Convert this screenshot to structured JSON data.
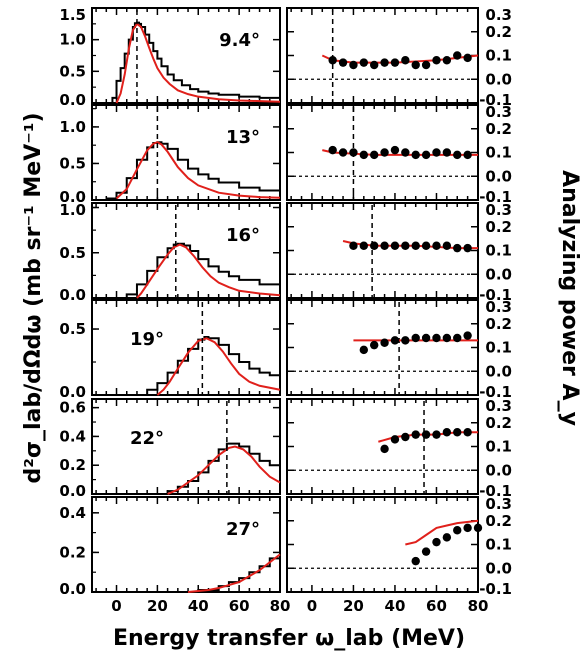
{
  "chart_data": {
    "type": "line",
    "xlabel": "Energy transfer ω_lab (MeV)",
    "ylabel_left": "d²σ_lab/dΩdω (mb sr⁻¹ MeV⁻¹)",
    "ylabel_right": "Analyzing power A_y",
    "x_ticks": [
      "0",
      "20",
      "40",
      "60",
      "80"
    ],
    "xlim": [
      -12,
      80
    ],
    "colors": {
      "data": "#000000",
      "theory": "#e0201b"
    },
    "ay_ylim": [
      -0.1,
      0.3
    ],
    "ay_ticks": [
      "0.3",
      "0.2",
      "0.1",
      "0.0",
      "-0.1"
    ],
    "panels": [
      {
        "angle": "9.4°",
        "peak": 10,
        "xs_ylim": [
          0,
          1.5
        ],
        "xs_ticks": [
          "1.5",
          "1.0",
          "0.5",
          "0.0"
        ],
        "xs_data": [
          [
            -5,
            0.0
          ],
          [
            -2,
            0.08
          ],
          [
            0,
            0.35
          ],
          [
            2,
            0.55
          ],
          [
            4,
            0.78
          ],
          [
            6,
            1.0
          ],
          [
            8,
            1.2
          ],
          [
            9,
            1.26
          ],
          [
            10,
            1.27
          ],
          [
            11,
            1.25
          ],
          [
            12,
            1.2
          ],
          [
            14,
            1.08
          ],
          [
            16,
            0.95
          ],
          [
            18,
            0.82
          ],
          [
            20,
            0.7
          ],
          [
            22,
            0.58
          ],
          [
            25,
            0.45
          ],
          [
            28,
            0.36
          ],
          [
            32,
            0.28
          ],
          [
            36,
            0.22
          ],
          [
            40,
            0.18
          ],
          [
            45,
            0.15
          ],
          [
            50,
            0.13
          ],
          [
            60,
            0.1
          ],
          [
            70,
            0.08
          ],
          [
            80,
            0.06
          ]
        ],
        "xs_theory": [
          [
            0,
            0.0
          ],
          [
            2,
            0.15
          ],
          [
            4,
            0.45
          ],
          [
            6,
            0.85
          ],
          [
            8,
            1.15
          ],
          [
            10,
            1.25
          ],
          [
            12,
            1.2
          ],
          [
            14,
            1.05
          ],
          [
            16,
            0.87
          ],
          [
            18,
            0.7
          ],
          [
            20,
            0.55
          ],
          [
            23,
            0.4
          ],
          [
            26,
            0.3
          ],
          [
            30,
            0.2
          ],
          [
            35,
            0.14
          ],
          [
            40,
            0.1
          ],
          [
            50,
            0.06
          ],
          [
            60,
            0.04
          ],
          [
            70,
            0.03
          ],
          [
            80,
            0.02
          ]
        ],
        "ay_data": [
          [
            10,
            0.08
          ],
          [
            15,
            0.07
          ],
          [
            20,
            0.06
          ],
          [
            25,
            0.07
          ],
          [
            30,
            0.06
          ],
          [
            35,
            0.07
          ],
          [
            40,
            0.07
          ],
          [
            45,
            0.08
          ],
          [
            50,
            0.06
          ],
          [
            55,
            0.06
          ],
          [
            60,
            0.08
          ],
          [
            65,
            0.08
          ],
          [
            70,
            0.1
          ],
          [
            75,
            0.09
          ]
        ],
        "ay_theory": [
          [
            5,
            0.1
          ],
          [
            10,
            0.08
          ],
          [
            20,
            0.07
          ],
          [
            30,
            0.07
          ],
          [
            40,
            0.07
          ],
          [
            50,
            0.075
          ],
          [
            60,
            0.08
          ],
          [
            70,
            0.09
          ],
          [
            80,
            0.1
          ]
        ]
      },
      {
        "angle": "13°",
        "peak": 20,
        "xs_ylim": [
          0,
          1.3
        ],
        "xs_ticks": [
          "1.0",
          "0.5",
          "0.0"
        ],
        "xs_data": [
          [
            -5,
            0.02
          ],
          [
            0,
            0.1
          ],
          [
            5,
            0.3
          ],
          [
            10,
            0.55
          ],
          [
            15,
            0.72
          ],
          [
            18,
            0.78
          ],
          [
            20,
            0.79
          ],
          [
            22,
            0.77
          ],
          [
            25,
            0.7
          ],
          [
            30,
            0.55
          ],
          [
            35,
            0.43
          ],
          [
            40,
            0.35
          ],
          [
            45,
            0.29
          ],
          [
            50,
            0.24
          ],
          [
            60,
            0.17
          ],
          [
            70,
            0.13
          ],
          [
            80,
            0.1
          ]
        ],
        "xs_theory": [
          [
            0,
            0.02
          ],
          [
            5,
            0.15
          ],
          [
            10,
            0.42
          ],
          [
            15,
            0.68
          ],
          [
            18,
            0.77
          ],
          [
            20,
            0.79
          ],
          [
            22,
            0.76
          ],
          [
            25,
            0.66
          ],
          [
            30,
            0.45
          ],
          [
            35,
            0.3
          ],
          [
            40,
            0.2
          ],
          [
            50,
            0.1
          ],
          [
            60,
            0.06
          ],
          [
            70,
            0.04
          ],
          [
            80,
            0.03
          ]
        ],
        "ay_data": [
          [
            10,
            0.11
          ],
          [
            15,
            0.1
          ],
          [
            20,
            0.1
          ],
          [
            25,
            0.09
          ],
          [
            30,
            0.09
          ],
          [
            35,
            0.1
          ],
          [
            40,
            0.11
          ],
          [
            45,
            0.1
          ],
          [
            50,
            0.09
          ],
          [
            55,
            0.09
          ],
          [
            60,
            0.1
          ],
          [
            65,
            0.1
          ],
          [
            70,
            0.09
          ],
          [
            75,
            0.09
          ]
        ],
        "ay_theory": [
          [
            5,
            0.11
          ],
          [
            10,
            0.1
          ],
          [
            20,
            0.095
          ],
          [
            30,
            0.09
          ],
          [
            40,
            0.09
          ],
          [
            50,
            0.09
          ],
          [
            60,
            0.09
          ],
          [
            70,
            0.09
          ],
          [
            80,
            0.09
          ]
        ]
      },
      {
        "angle": "16°",
        "peak": 29,
        "xs_ylim": [
          0,
          1.05
        ],
        "xs_ticks": [
          "1.0",
          "0.5",
          "0.0"
        ],
        "xs_data": [
          [
            0,
            0.0
          ],
          [
            5,
            0.04
          ],
          [
            10,
            0.15
          ],
          [
            15,
            0.3
          ],
          [
            20,
            0.45
          ],
          [
            25,
            0.55
          ],
          [
            28,
            0.59
          ],
          [
            30,
            0.6
          ],
          [
            33,
            0.58
          ],
          [
            36,
            0.52
          ],
          [
            40,
            0.43
          ],
          [
            45,
            0.35
          ],
          [
            50,
            0.29
          ],
          [
            55,
            0.24
          ],
          [
            60,
            0.2
          ],
          [
            70,
            0.15
          ],
          [
            80,
            0.12
          ]
        ],
        "xs_theory": [
          [
            10,
            0.0
          ],
          [
            12,
            0.05
          ],
          [
            15,
            0.15
          ],
          [
            20,
            0.32
          ],
          [
            25,
            0.48
          ],
          [
            28,
            0.56
          ],
          [
            31,
            0.59
          ],
          [
            34,
            0.56
          ],
          [
            38,
            0.46
          ],
          [
            42,
            0.34
          ],
          [
            46,
            0.24
          ],
          [
            50,
            0.17
          ],
          [
            55,
            0.12
          ],
          [
            60,
            0.08
          ],
          [
            70,
            0.05
          ],
          [
            80,
            0.03
          ]
        ],
        "ay_data": [
          [
            20,
            0.12
          ],
          [
            25,
            0.12
          ],
          [
            30,
            0.12
          ],
          [
            35,
            0.12
          ],
          [
            40,
            0.12
          ],
          [
            45,
            0.12
          ],
          [
            50,
            0.12
          ],
          [
            55,
            0.12
          ],
          [
            60,
            0.12
          ],
          [
            65,
            0.12
          ],
          [
            70,
            0.11
          ],
          [
            75,
            0.11
          ]
        ],
        "ay_theory": [
          [
            15,
            0.14
          ],
          [
            20,
            0.13
          ],
          [
            30,
            0.12
          ],
          [
            40,
            0.12
          ],
          [
            50,
            0.12
          ],
          [
            60,
            0.115
          ],
          [
            70,
            0.11
          ],
          [
            80,
            0.11
          ]
        ]
      },
      {
        "angle": "19°",
        "peak": 42,
        "xs_ylim": [
          0,
          0.72
        ],
        "xs_ticks": [
          "0.5",
          "0.0"
        ],
        "xs_data": [
          [
            10,
            0.0
          ],
          [
            15,
            0.04
          ],
          [
            20,
            0.09
          ],
          [
            25,
            0.17
          ],
          [
            30,
            0.26
          ],
          [
            35,
            0.35
          ],
          [
            40,
            0.42
          ],
          [
            43,
            0.44
          ],
          [
            45,
            0.43
          ],
          [
            50,
            0.38
          ],
          [
            55,
            0.31
          ],
          [
            60,
            0.25
          ],
          [
            65,
            0.2
          ],
          [
            70,
            0.17
          ],
          [
            75,
            0.15
          ],
          [
            80,
            0.13
          ]
        ],
        "xs_theory": [
          [
            20,
            0.0
          ],
          [
            23,
            0.04
          ],
          [
            26,
            0.1
          ],
          [
            30,
            0.2
          ],
          [
            35,
            0.32
          ],
          [
            40,
            0.41
          ],
          [
            44,
            0.43
          ],
          [
            48,
            0.4
          ],
          [
            52,
            0.33
          ],
          [
            56,
            0.24
          ],
          [
            60,
            0.16
          ],
          [
            65,
            0.1
          ],
          [
            70,
            0.07
          ],
          [
            80,
            0.04
          ]
        ],
        "ay_data": [
          [
            25,
            0.09
          ],
          [
            30,
            0.11
          ],
          [
            35,
            0.12
          ],
          [
            40,
            0.13
          ],
          [
            45,
            0.13
          ],
          [
            50,
            0.14
          ],
          [
            55,
            0.14
          ],
          [
            60,
            0.14
          ],
          [
            65,
            0.14
          ],
          [
            70,
            0.14
          ],
          [
            75,
            0.15
          ]
        ],
        "ay_theory": [
          [
            20,
            0.13
          ],
          [
            30,
            0.13
          ],
          [
            40,
            0.13
          ],
          [
            50,
            0.13
          ],
          [
            60,
            0.13
          ],
          [
            70,
            0.13
          ],
          [
            80,
            0.13
          ]
        ]
      },
      {
        "angle": "22°",
        "peak": 54,
        "xs_ylim": [
          0,
          0.66
        ],
        "xs_ticks": [
          "0.6",
          "0.4",
          "0.2",
          "0.0"
        ],
        "xs_data": [
          [
            20,
            0.0
          ],
          [
            25,
            0.02
          ],
          [
            30,
            0.05
          ],
          [
            35,
            0.09
          ],
          [
            40,
            0.15
          ],
          [
            45,
            0.23
          ],
          [
            50,
            0.31
          ],
          [
            54,
            0.35
          ],
          [
            57,
            0.35
          ],
          [
            60,
            0.33
          ],
          [
            65,
            0.28
          ],
          [
            70,
            0.23
          ],
          [
            75,
            0.2
          ],
          [
            80,
            0.18
          ]
        ],
        "xs_theory": [
          [
            25,
            0.0
          ],
          [
            30,
            0.03
          ],
          [
            35,
            0.08
          ],
          [
            40,
            0.13
          ],
          [
            45,
            0.2
          ],
          [
            50,
            0.27
          ],
          [
            55,
            0.32
          ],
          [
            58,
            0.33
          ],
          [
            62,
            0.31
          ],
          [
            66,
            0.26
          ],
          [
            70,
            0.19
          ],
          [
            75,
            0.12
          ],
          [
            80,
            0.08
          ]
        ],
        "ay_data": [
          [
            35,
            0.09
          ],
          [
            40,
            0.13
          ],
          [
            45,
            0.14
          ],
          [
            50,
            0.15
          ],
          [
            55,
            0.15
          ],
          [
            60,
            0.15
          ],
          [
            65,
            0.16
          ],
          [
            70,
            0.16
          ],
          [
            75,
            0.16
          ]
        ],
        "ay_theory": [
          [
            32,
            0.12
          ],
          [
            40,
            0.14
          ],
          [
            50,
            0.15
          ],
          [
            60,
            0.15
          ],
          [
            70,
            0.16
          ],
          [
            80,
            0.16
          ]
        ]
      },
      {
        "angle": "27°",
        "peak": null,
        "xs_ylim": [
          0,
          0.48
        ],
        "xs_ticks": [
          "0.4",
          "0.2",
          "0.0"
        ],
        "xs_data": [
          [
            30,
            0.0
          ],
          [
            40,
            0.01
          ],
          [
            50,
            0.03
          ],
          [
            55,
            0.05
          ],
          [
            60,
            0.07
          ],
          [
            65,
            0.1
          ],
          [
            70,
            0.13
          ],
          [
            75,
            0.17
          ],
          [
            80,
            0.2
          ]
        ],
        "xs_theory": [
          [
            35,
            0.0
          ],
          [
            45,
            0.01
          ],
          [
            50,
            0.02
          ],
          [
            55,
            0.035
          ],
          [
            60,
            0.05
          ],
          [
            65,
            0.08
          ],
          [
            70,
            0.11
          ],
          [
            75,
            0.15
          ],
          [
            80,
            0.19
          ]
        ],
        "ay_data": [
          [
            50,
            0.03
          ],
          [
            55,
            0.07
          ],
          [
            60,
            0.11
          ],
          [
            65,
            0.13
          ],
          [
            70,
            0.16
          ],
          [
            75,
            0.17
          ],
          [
            80,
            0.17
          ]
        ],
        "ay_theory": [
          [
            45,
            0.1
          ],
          [
            50,
            0.11
          ],
          [
            55,
            0.14
          ],
          [
            60,
            0.17
          ],
          [
            65,
            0.18
          ],
          [
            70,
            0.19
          ],
          [
            80,
            0.2
          ]
        ]
      }
    ]
  }
}
